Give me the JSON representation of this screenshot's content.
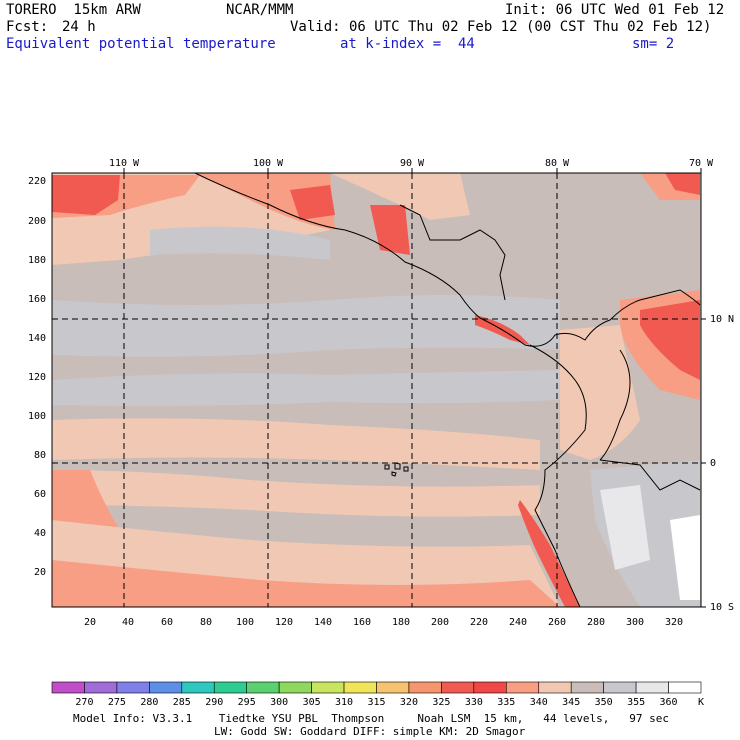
{
  "header": {
    "model": "TORERO  15km ARW",
    "center": "NCAR/MMM",
    "init": "Init: 06 UTC Wed 01 Feb 12",
    "fcst_label": "Fcst:",
    "fcst_value": "24 h",
    "valid": "Valid: 06 UTC Thu 02 Feb 12 (00 CST Thu 02 Feb 12)",
    "field": "Equivalent potential temperature",
    "level": "at k-index =  44",
    "smooth": "sm= 2"
  },
  "map": {
    "top_lon_labels": [
      "110 W",
      "100 W",
      "90 W",
      "80 W",
      "70 W"
    ],
    "right_lat_labels": [
      "10 N",
      "0",
      "10 S"
    ],
    "left_grid_labels": [
      "220",
      "200",
      "180",
      "160",
      "140",
      "120",
      "100",
      "80",
      "60",
      "40",
      "20"
    ],
    "bottom_grid_labels": [
      "20",
      "40",
      "60",
      "80",
      "100",
      "120",
      "140",
      "160",
      "180",
      "200",
      "220",
      "240",
      "260",
      "280",
      "300",
      "320"
    ],
    "grid_line_style": "dashed"
  },
  "colorbar": {
    "ticks": [
      "270",
      "275",
      "280",
      "285",
      "290",
      "295",
      "300",
      "305",
      "310",
      "315",
      "320",
      "325",
      "330",
      "335",
      "340",
      "345",
      "350",
      "355",
      "360"
    ],
    "unit": "K",
    "colors": [
      "#c04ec8",
      "#9f6cd8",
      "#8080e8",
      "#5e8ee6",
      "#2ec8c0",
      "#2ecc90",
      "#5ad070",
      "#8ed860",
      "#c8e460",
      "#f0e45a",
      "#f6c470",
      "#f6966e",
      "#f05a50",
      "#f04848",
      "#f89e84",
      "#f0c8b4",
      "#c8bdb8",
      "#c8c8cc",
      "#e8e8ea",
      "#ffffff"
    ]
  },
  "footer": {
    "line1": "Model Info: V3.3.1    Tiedtke YSU PBL  Thompson     Noah LSM  15 km,   44 levels,   97 sec",
    "line2": "LW: Godd SW: Goddard DIFF: simple KM: 2D Smagor"
  }
}
